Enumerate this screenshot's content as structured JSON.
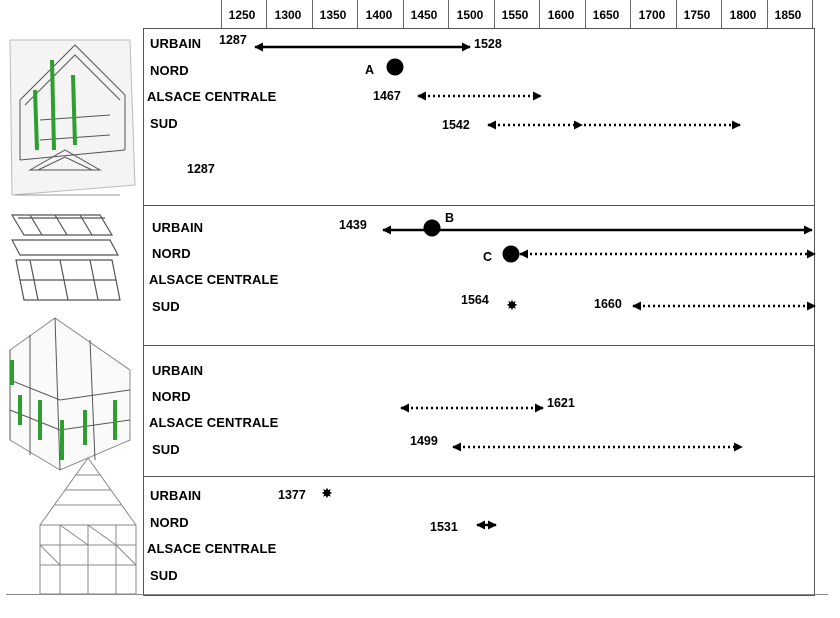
{
  "axis": {
    "ticks": [
      "1250",
      "1300",
      "1350",
      "1400",
      "1450",
      "1500",
      "1550",
      "1600",
      "1650",
      "1700",
      "1750",
      "1800",
      "1850"
    ]
  },
  "row_labels": [
    "URBAIN",
    "NORD",
    "ALSACE CENTRALE",
    "SUD"
  ],
  "panels": [
    {
      "years": [
        "1287",
        "1528",
        "1467",
        "1542",
        "1287"
      ],
      "points": [
        "A"
      ]
    },
    {
      "years": [
        "1439",
        "1564",
        "1660"
      ],
      "points": [
        "B",
        "C"
      ]
    },
    {
      "years": [
        "1621",
        "1499"
      ],
      "points": []
    },
    {
      "years": [
        "1377",
        "1531"
      ],
      "points": []
    }
  ],
  "colors": {
    "line": "#000000",
    "highlight_green": "#2e9e2e"
  },
  "icons": [
    "timber-frame-roof-illustration",
    "timber-frame-floor-illustration",
    "timber-frame-wall-illustration",
    "timber-frame-gable-illustration"
  ]
}
